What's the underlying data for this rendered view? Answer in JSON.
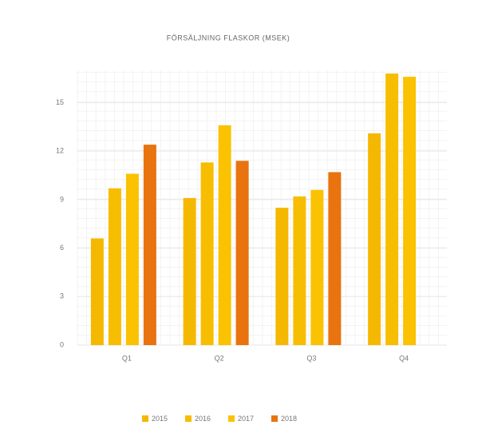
{
  "chart_data": {
    "type": "bar",
    "title": "FÖRSÄLJNING FLASKOR (MSEK)",
    "categories": [
      "Q1",
      "Q2",
      "Q3",
      "Q4"
    ],
    "series": [
      {
        "name": "2015",
        "color": "#f5b800",
        "values": [
          6.6,
          9.1,
          8.5,
          13.1
        ]
      },
      {
        "name": "2016",
        "color": "#f7bd00",
        "values": [
          9.7,
          11.3,
          9.2,
          16.8
        ]
      },
      {
        "name": "2017",
        "color": "#fac200",
        "values": [
          10.6,
          13.6,
          9.6,
          16.6
        ]
      },
      {
        "name": "2018",
        "color": "#e8730f",
        "values": [
          12.4,
          11.4,
          10.7,
          null
        ]
      }
    ],
    "ylim": [
      0,
      17
    ],
    "yticks": [
      0,
      3,
      6,
      9,
      12,
      15
    ],
    "grid": true,
    "legend": "bottom"
  }
}
